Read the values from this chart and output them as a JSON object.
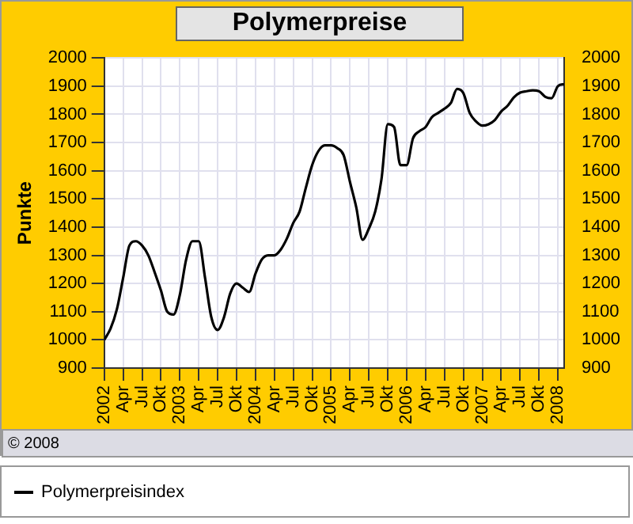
{
  "chart_data": {
    "type": "line",
    "title": "Polymerpreise",
    "ylabel": "Punkte",
    "annotations": [
      "© 2008"
    ],
    "x": [
      "2002-01",
      "2002-02",
      "2002-03",
      "2002-04",
      "2002-05",
      "2002-06",
      "2002-07",
      "2002-08",
      "2002-09",
      "2002-10",
      "2002-11",
      "2002-12",
      "2003-01",
      "2003-02",
      "2003-03",
      "2003-04",
      "2003-05",
      "2003-06",
      "2003-07",
      "2003-08",
      "2003-09",
      "2003-10",
      "2003-11",
      "2003-12",
      "2004-01",
      "2004-02",
      "2004-03",
      "2004-04",
      "2004-05",
      "2004-06",
      "2004-07",
      "2004-08",
      "2004-09",
      "2004-10",
      "2004-11",
      "2004-12",
      "2005-01",
      "2005-02",
      "2005-03",
      "2005-04",
      "2005-05",
      "2005-06",
      "2005-07",
      "2005-08",
      "2005-09",
      "2005-10",
      "2005-11",
      "2005-12",
      "2006-01",
      "2006-02",
      "2006-03",
      "2006-04",
      "2006-05",
      "2006-06",
      "2006-07",
      "2006-08",
      "2006-09",
      "2006-10",
      "2006-11",
      "2006-12",
      "2007-01",
      "2007-02",
      "2007-03",
      "2007-04",
      "2007-05",
      "2007-06",
      "2007-07",
      "2007-08",
      "2007-09",
      "2007-10",
      "2007-11",
      "2007-12",
      "2008-01",
      "2008-02"
    ],
    "series": [
      {
        "name": "Polymerpreisindex",
        "color": "#000000",
        "values": [
          1000,
          1040,
          1108,
          1220,
          1335,
          1350,
          1335,
          1300,
          1240,
          1175,
          1100,
          1090,
          1160,
          1285,
          1350,
          1350,
          1220,
          1080,
          1035,
          1080,
          1165,
          1200,
          1185,
          1170,
          1235,
          1285,
          1300,
          1300,
          1320,
          1360,
          1415,
          1455,
          1540,
          1620,
          1670,
          1690,
          1690,
          1680,
          1655,
          1560,
          1470,
          1355,
          1395,
          1455,
          1570,
          1765,
          1755,
          1620,
          1620,
          1715,
          1740,
          1755,
          1790,
          1805,
          1820,
          1840,
          1890,
          1875,
          1805,
          1775,
          1760,
          1765,
          1780,
          1810,
          1830,
          1860,
          1877,
          1882,
          1885,
          1882,
          1862,
          1857,
          1900,
          1907
        ]
      }
    ],
    "xlim": [
      "2002-01",
      "2008-02"
    ],
    "xticks": [
      {
        "value": "2002-01",
        "label": "2002"
      },
      {
        "value": "2002-04",
        "label": "Apr"
      },
      {
        "value": "2002-07",
        "label": "Jul"
      },
      {
        "value": "2002-10",
        "label": "Okt"
      },
      {
        "value": "2003-01",
        "label": "2003"
      },
      {
        "value": "2003-04",
        "label": "Apr"
      },
      {
        "value": "2003-07",
        "label": "Jul"
      },
      {
        "value": "2003-10",
        "label": "Okt"
      },
      {
        "value": "2004-01",
        "label": "2004"
      },
      {
        "value": "2004-04",
        "label": "Apr"
      },
      {
        "value": "2004-07",
        "label": "Jul"
      },
      {
        "value": "2004-10",
        "label": "Okt"
      },
      {
        "value": "2005-01",
        "label": "2005"
      },
      {
        "value": "2005-04",
        "label": "Apr"
      },
      {
        "value": "2005-07",
        "label": "Jul"
      },
      {
        "value": "2005-10",
        "label": "Okt"
      },
      {
        "value": "2006-01",
        "label": "2006"
      },
      {
        "value": "2006-04",
        "label": "Apr"
      },
      {
        "value": "2006-07",
        "label": "Jul"
      },
      {
        "value": "2006-10",
        "label": "Okt"
      },
      {
        "value": "2007-01",
        "label": "2007"
      },
      {
        "value": "2007-04",
        "label": "Apr"
      },
      {
        "value": "2007-07",
        "label": "Jul"
      },
      {
        "value": "2007-10",
        "label": "Okt"
      },
      {
        "value": "2008-01",
        "label": "2008"
      }
    ],
    "ylim": [
      900,
      2000
    ],
    "yticks": [
      900,
      1000,
      1100,
      1200,
      1300,
      1400,
      1500,
      1600,
      1700,
      1800,
      1900,
      2000
    ],
    "y2lim": [
      900,
      2000
    ],
    "y2ticks": [
      900,
      1000,
      1100,
      1200,
      1300,
      1400,
      1500,
      1600,
      1700,
      1800,
      1900,
      2000
    ],
    "grid": true,
    "legend": "bottom",
    "marker": "none",
    "line_style": "solid"
  }
}
